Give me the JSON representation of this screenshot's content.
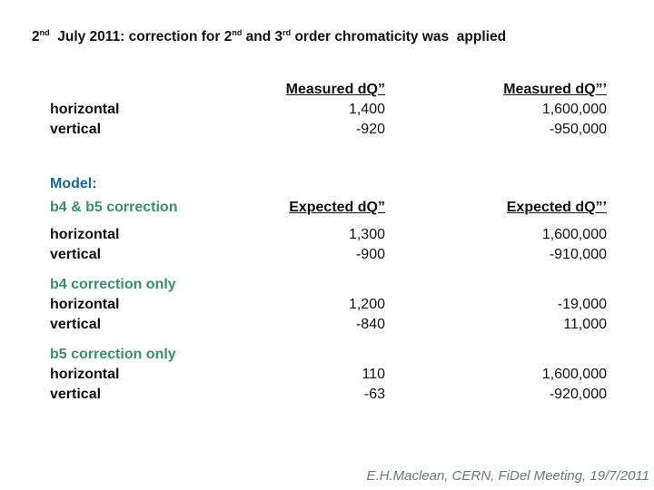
{
  "slide": {
    "title": {
      "parts": [
        "2",
        "nd",
        "  July 2011: correction for 2",
        "nd",
        " and 3",
        "rd",
        " order chromaticity was  applied"
      ]
    },
    "model_label": "Model:",
    "footer": "E.H.Maclean, CERN, FiDel Meeting, 19/7/2011"
  },
  "measured": {
    "header_dq2": "Measured dQ”",
    "header_dq3": "Measured dQ”’",
    "rows": [
      {
        "label": "horizontal",
        "dq2": "1,400",
        "dq3": "1,600,000"
      },
      {
        "label": "vertical",
        "dq2": "-920",
        "dq3": "-950,000"
      }
    ]
  },
  "model_sections": [
    {
      "label": "b4 & b5 correction",
      "header_dq2": "Expected dQ”",
      "header_dq3": "Expected dQ”’",
      "rows": [
        {
          "label": "horizontal",
          "dq2": "1,300",
          "dq3": "1,600,000"
        },
        {
          "label": "vertical",
          "dq2": "-900",
          "dq3": "-910,000"
        }
      ]
    },
    {
      "label": "b4 correction only",
      "rows": [
        {
          "label": "horizontal",
          "dq2": "1,200",
          "dq3": "-19,000"
        },
        {
          "label": "vertical",
          "dq2": "-840",
          "dq3": "11,000"
        }
      ]
    },
    {
      "label": "b5 correction only",
      "rows": [
        {
          "label": "horizontal",
          "dq2": "110",
          "dq3": "1,600,000"
        },
        {
          "label": "vertical",
          "dq2": "-63",
          "dq3": "-920,000"
        }
      ]
    }
  ],
  "colors": {
    "title_text": "#111111",
    "model_blue": "#166a9a",
    "section_green": "#35906c",
    "footer_gray": "#6b7a70",
    "background": "#ffffff"
  }
}
